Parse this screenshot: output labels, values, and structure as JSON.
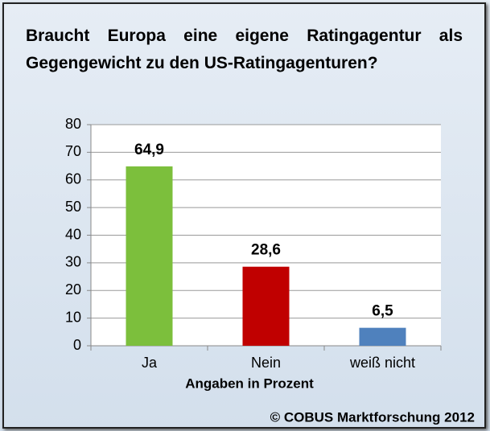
{
  "chart_data": {
    "type": "bar",
    "title": "Braucht Europa eine eigene Ratingagentur als Gegengewicht zu den US-Ratingagenturen?",
    "categories": [
      "Ja",
      "Nein",
      "weiß nicht"
    ],
    "values": [
      64.9,
      28.6,
      6.5
    ],
    "value_labels": [
      "64,9",
      "28,6",
      "6,5"
    ],
    "colors": [
      "#7cbf3c",
      "#c00000",
      "#4f81bd"
    ],
    "xlabel": "Angaben in Prozent",
    "source": "© COBUS Marktforschung 2012",
    "ylim": [
      0,
      80
    ],
    "yticks": [
      0,
      10,
      20,
      30,
      40,
      50,
      60,
      70,
      80
    ],
    "grid": true
  }
}
